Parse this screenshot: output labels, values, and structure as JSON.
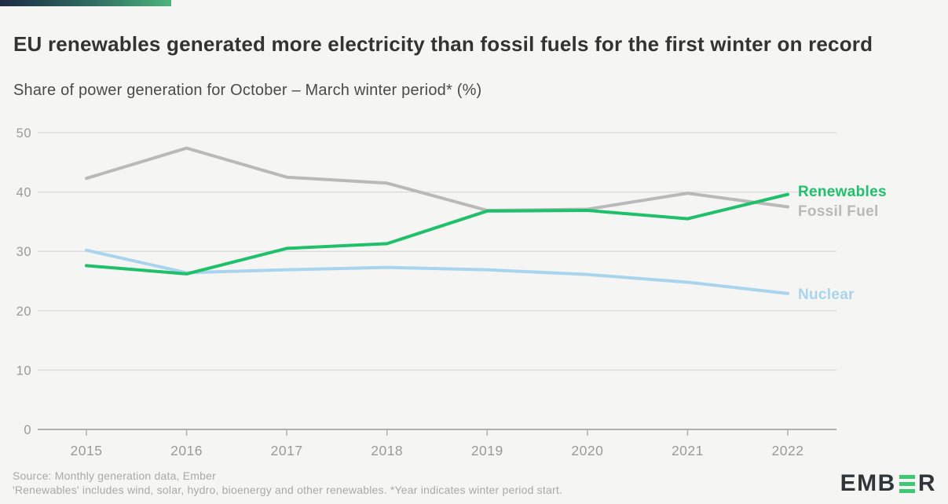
{
  "header": {
    "accent_colors": {
      "start": "#1d2b45",
      "end": "#4eb47b"
    },
    "title": "EU renewables generated more electricity than fossil fuels for the first winter on record",
    "subtitle": "Share of power generation for October – March winter period* (%)"
  },
  "chart_data": {
    "type": "line",
    "title": "Share of power generation for October – March winter period* (%)",
    "x": [
      2015,
      2016,
      2017,
      2018,
      2019,
      2020,
      2021,
      2022
    ],
    "series": [
      {
        "name": "Fossil Fuel",
        "color": "#b9b9b9",
        "values": [
          42.3,
          47.4,
          42.5,
          41.5,
          36.9,
          37.1,
          39.8,
          37.5
        ]
      },
      {
        "name": "Nuclear",
        "color": "#a9d4ee",
        "values": [
          30.2,
          26.4,
          26.9,
          27.3,
          26.9,
          26.1,
          24.8,
          22.9
        ]
      },
      {
        "name": "Renewables",
        "color": "#1fc06a",
        "values": [
          27.6,
          26.2,
          30.5,
          31.3,
          36.8,
          36.9,
          35.5,
          39.6
        ]
      }
    ],
    "xlabel": "",
    "ylabel": "",
    "ylim": [
      0,
      50
    ],
    "yticks": [
      0,
      10,
      20,
      30,
      40,
      50
    ],
    "grid": true,
    "legend_position": "right-end-labels",
    "axis_text_color": "#9a9a9a",
    "gridline_color": "#dddddd",
    "baseline_color": "#b0b0b0"
  },
  "footer": {
    "source_line1": "Source: Monthly generation data, Ember",
    "source_line2": "'Renewables' includes wind, solar, hydro, bioenergy and other renewables. *Year indicates winter period start.",
    "logo_text_left": "EMB",
    "logo_text_right": "R"
  }
}
